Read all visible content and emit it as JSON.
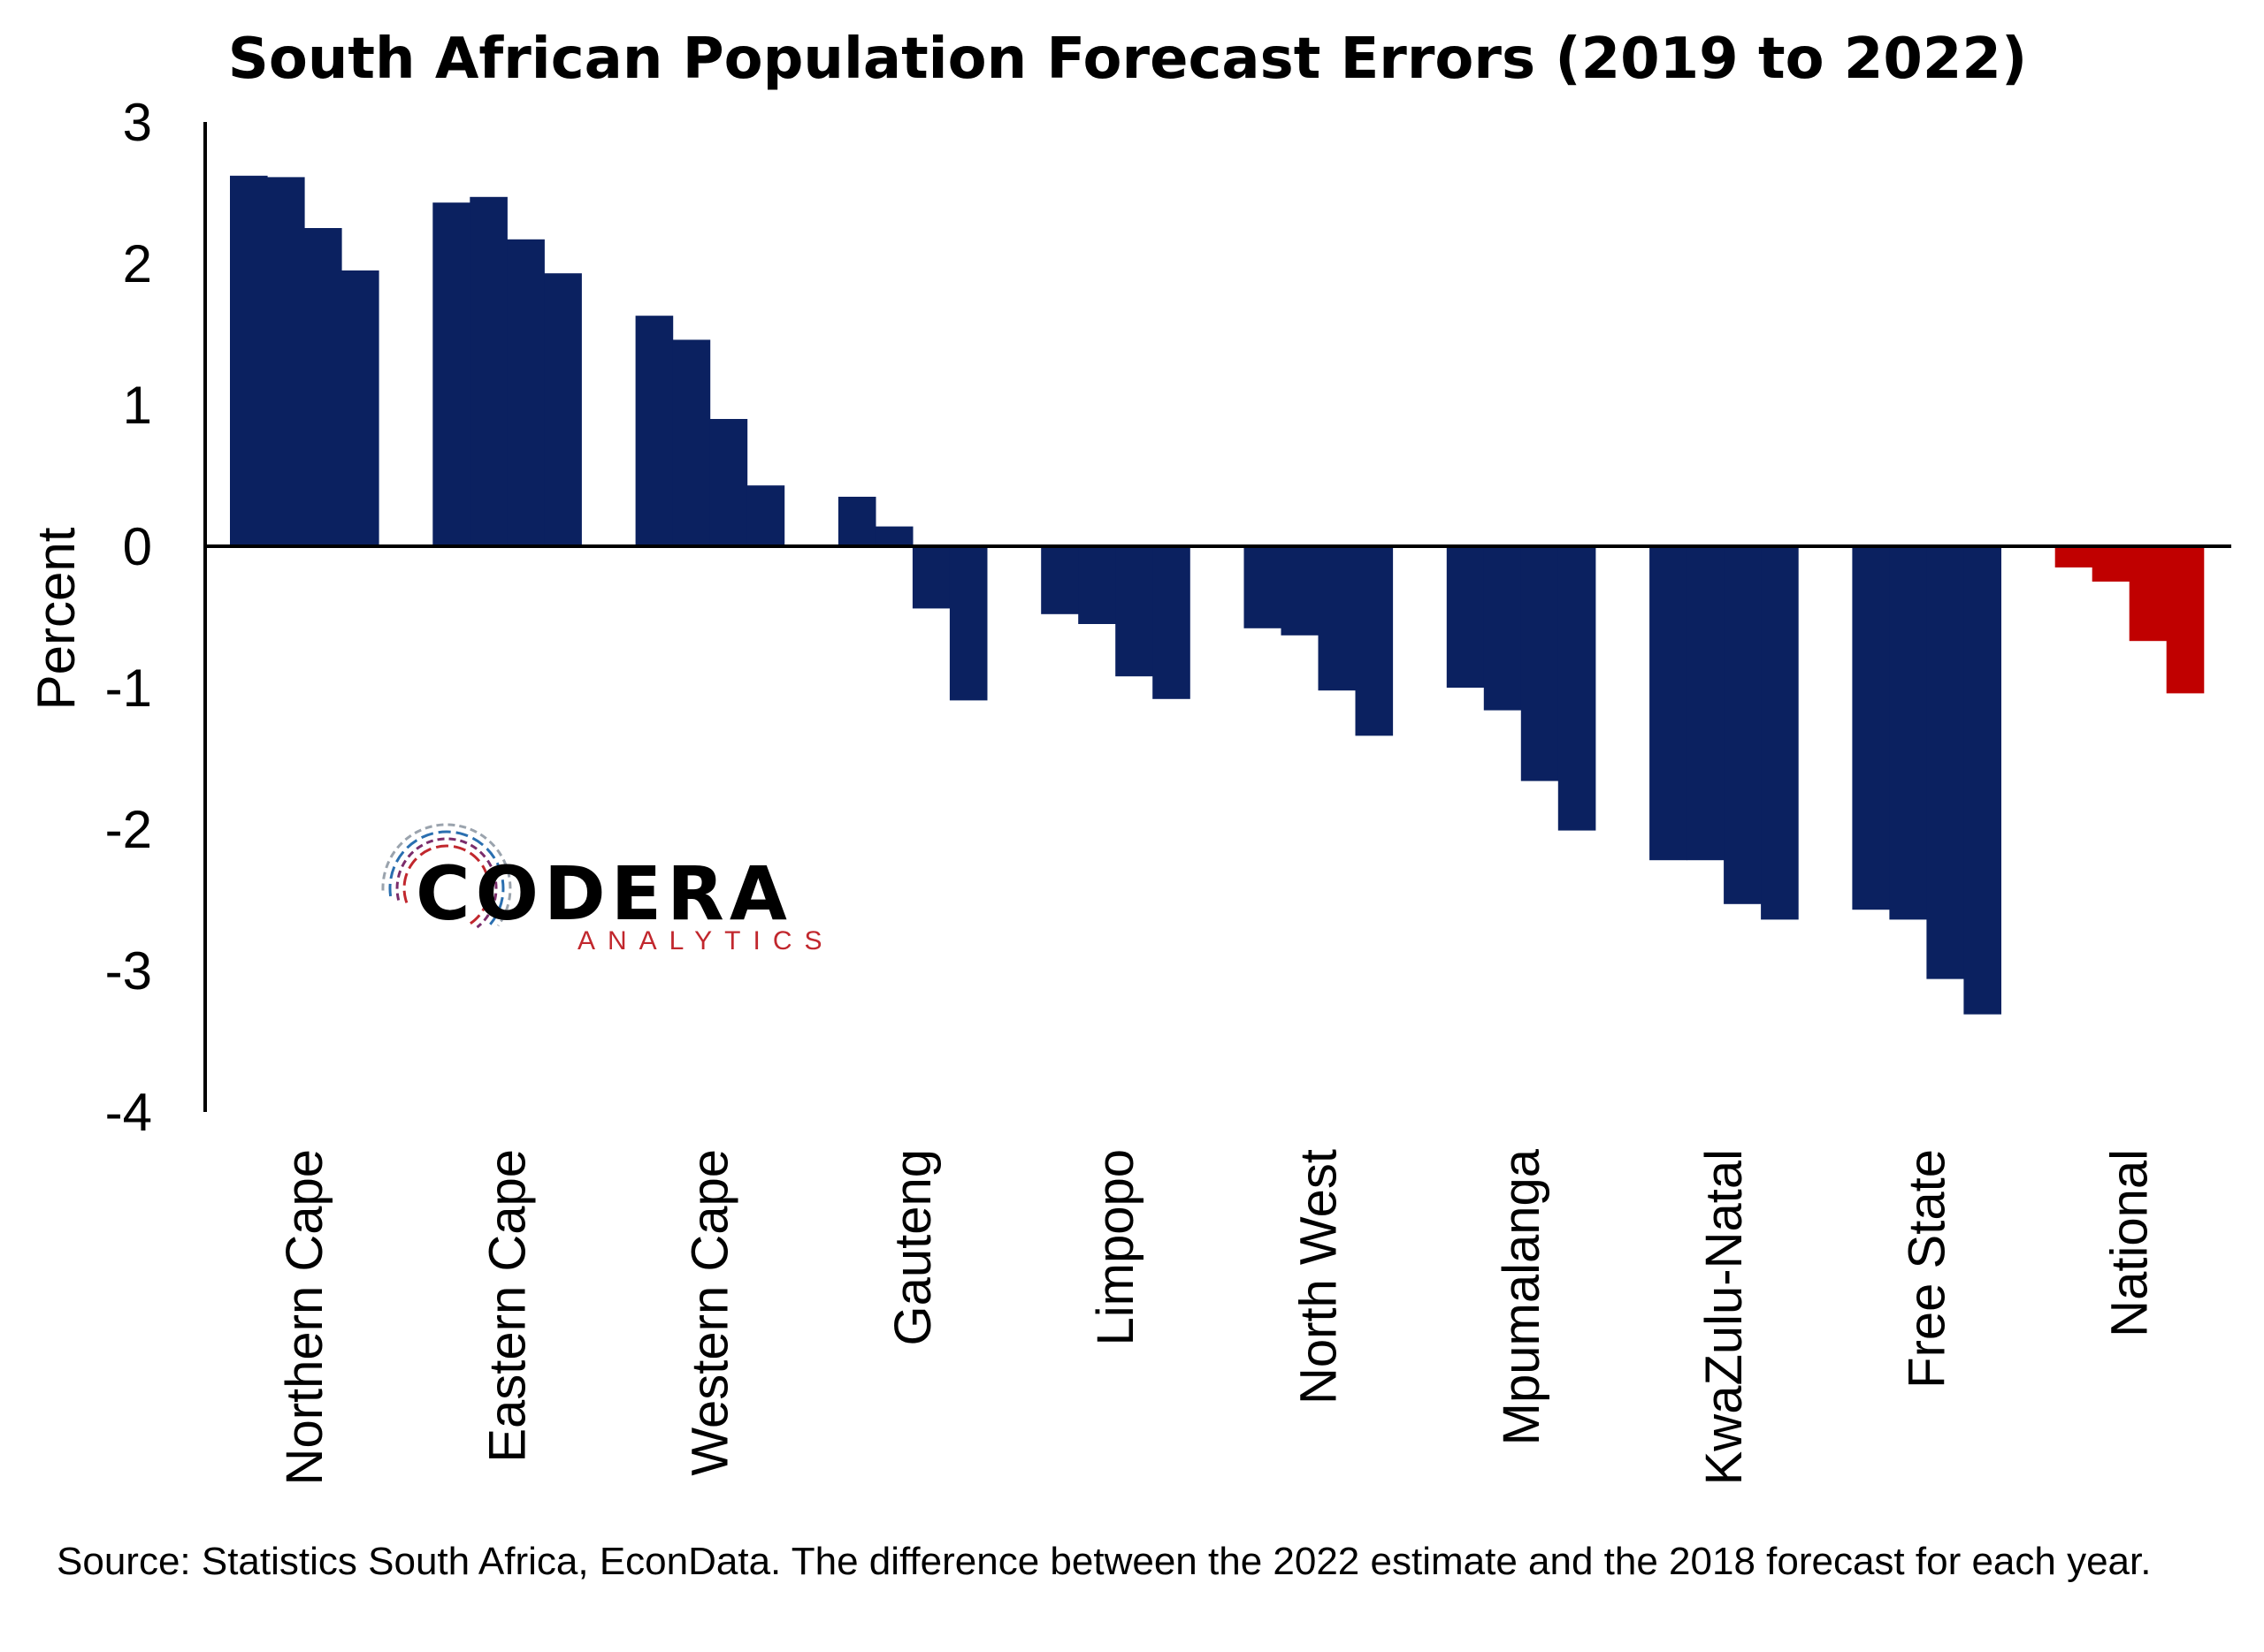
{
  "colors": {
    "bar": "#0b2160",
    "national_bar": "#c00000",
    "axis": "#000000",
    "logo_arc_1": "#c1272d",
    "logo_arc_2": "#7b2d6b",
    "logo_arc_3": "#2a6fb0",
    "logo_arc_4": "#9aa3ad"
  },
  "logo": {
    "name": "CODERA",
    "tagline": "ANALYTICS"
  },
  "source_note": "Source: Statistics South Africa, EconData. The difference between the 2022 estimate and the 2018 forecast for each year.",
  "chart_data": {
    "type": "bar",
    "title": "South African Population Forecast Errors (2019 to 2022)",
    "xlabel": "",
    "ylabel": "Percent",
    "ylim": [
      -4,
      3
    ],
    "yticks": [
      3,
      2,
      1,
      0,
      -1,
      -2,
      -3,
      -4
    ],
    "grid": false,
    "legend": "none",
    "categories": [
      "Northern Cape",
      "Eastern Cape",
      "Western Cape",
      "Gauteng",
      "Limpopo",
      "North West",
      "Mpumalanga",
      "KwaZulu-Natal",
      "Free State",
      "National"
    ],
    "highlight_category": "National",
    "values": [
      [
        2.62,
        2.61,
        2.25,
        1.95
      ],
      [
        2.43,
        2.47,
        2.17,
        1.93
      ],
      [
        1.63,
        1.46,
        0.9,
        0.43
      ],
      [
        0.35,
        0.14,
        -0.44,
        -1.09
      ],
      [
        -0.48,
        -0.55,
        -0.92,
        -1.08
      ],
      [
        -0.58,
        -0.63,
        -1.02,
        -1.34
      ],
      [
        -1.0,
        -1.16,
        -1.66,
        -2.01
      ],
      [
        -2.22,
        -2.22,
        -2.53,
        -2.64
      ],
      [
        -2.57,
        -2.64,
        -3.06,
        -3.31
      ],
      [
        -0.15,
        -0.25,
        -0.67,
        -1.04
      ]
    ]
  }
}
